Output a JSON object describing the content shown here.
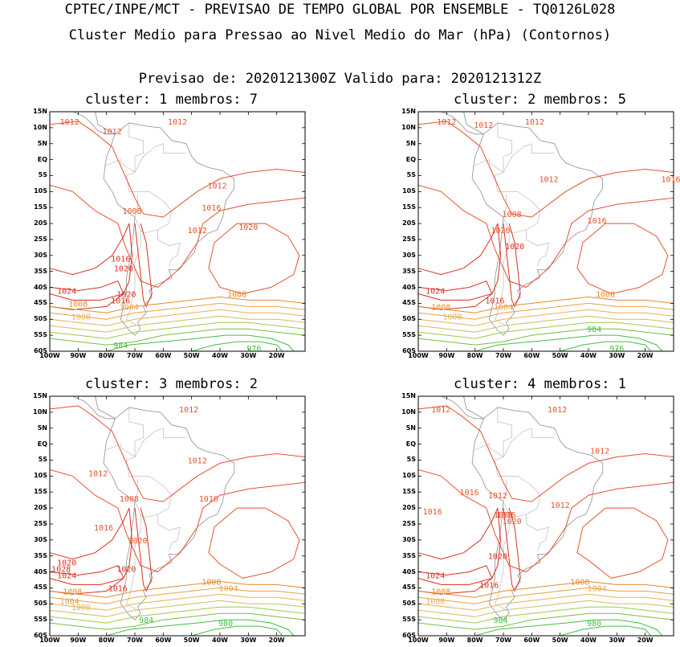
{
  "header": {
    "title_line1": "CPTEC/INPE/MCT - PREVISAO DE TEMPO GLOBAL POR ENSEMBLE - TQ0126L028",
    "title_line2": "Cluster Medio para Pressao ao Nivel Medio do Mar (hPa) (Contornos)",
    "title_line3": "Previsao de: 2020121300Z    Valido para: 2020121312Z"
  },
  "axes": {
    "lat_labels": [
      "15N",
      "10N",
      "5N",
      "EQ",
      "5S",
      "10S",
      "15S",
      "20S",
      "25S",
      "30S",
      "35S",
      "40S",
      "45S",
      "50S",
      "55S",
      "60S"
    ],
    "lon_labels": [
      "100W",
      "90W",
      "80W",
      "70W",
      "60W",
      "50W",
      "40W",
      "30W",
      "20W"
    ]
  },
  "panels": [
    {
      "subtitle": "cluster: 1   membros: 7",
      "labels": [
        {
          "t": "1012",
          "c": "#e8502a"
        },
        {
          "t": "1012",
          "c": "#e8502a"
        },
        {
          "t": "1012",
          "c": "#e8502a"
        },
        {
          "t": "1012",
          "c": "#e8502a"
        },
        {
          "t": "1008",
          "c": "#e8502a"
        },
        {
          "t": "1012",
          "c": "#e8502a"
        },
        {
          "t": "1016",
          "c": "#e8502a"
        },
        {
          "t": "1020",
          "c": "#e8502a"
        },
        {
          "t": "1016",
          "c": "#d8301f"
        },
        {
          "t": "1020",
          "c": "#d8301f"
        },
        {
          "t": "1024",
          "c": "#d8301f"
        },
        {
          "t": "1020",
          "c": "#d8301f"
        },
        {
          "t": "1016",
          "c": "#d8301f"
        },
        {
          "t": "1008",
          "c": "#e8882a"
        },
        {
          "t": "1004",
          "c": "#e8a040"
        },
        {
          "t": "1008",
          "c": "#e8882a"
        },
        {
          "t": "1000",
          "c": "#e8b050"
        },
        {
          "t": "984",
          "c": "#40c040"
        },
        {
          "t": "976",
          "c": "#40c040"
        }
      ]
    },
    {
      "subtitle": "cluster: 2   membros: 5",
      "labels": [
        {
          "t": "1012",
          "c": "#e8502a"
        },
        {
          "t": "1012",
          "c": "#e8502a"
        },
        {
          "t": "1012",
          "c": "#e8502a"
        },
        {
          "t": "1012",
          "c": "#e8502a"
        },
        {
          "t": "1008",
          "c": "#e8502a"
        },
        {
          "t": "1016",
          "c": "#e8502a"
        },
        {
          "t": "1016",
          "c": "#e8502a"
        },
        {
          "t": "1020",
          "c": "#e8502a"
        },
        {
          "t": "1020",
          "c": "#d8301f"
        },
        {
          "t": "1024",
          "c": "#d8301f"
        },
        {
          "t": "1016",
          "c": "#d8301f"
        },
        {
          "t": "1008",
          "c": "#e8882a"
        },
        {
          "t": "1004",
          "c": "#e8a040"
        },
        {
          "t": "1008",
          "c": "#e8882a"
        },
        {
          "t": "1000",
          "c": "#e8b050"
        },
        {
          "t": "984",
          "c": "#40c040"
        },
        {
          "t": "976",
          "c": "#40c040"
        }
      ]
    },
    {
      "subtitle": "cluster: 3   membros: 2",
      "labels": [
        {
          "t": "1012",
          "c": "#e8502a"
        },
        {
          "t": "1012",
          "c": "#e8502a"
        },
        {
          "t": "1012",
          "c": "#e8502a"
        },
        {
          "t": "1008",
          "c": "#e8502a"
        },
        {
          "t": "1016",
          "c": "#e8502a"
        },
        {
          "t": "1016",
          "c": "#e8502a"
        },
        {
          "t": "1020",
          "c": "#e8502a"
        },
        {
          "t": "1020",
          "c": "#d8301f"
        },
        {
          "t": "1020",
          "c": "#d8301f"
        },
        {
          "t": "1028",
          "c": "#d8301f"
        },
        {
          "t": "1024",
          "c": "#d8301f"
        },
        {
          "t": "1016",
          "c": "#d8301f"
        },
        {
          "t": "1008",
          "c": "#e8882a"
        },
        {
          "t": "1004",
          "c": "#e8a040"
        },
        {
          "t": "1008",
          "c": "#e8882a"
        },
        {
          "t": "1004",
          "c": "#e8a040"
        },
        {
          "t": "1000",
          "c": "#e8b050"
        },
        {
          "t": "984",
          "c": "#40c040"
        },
        {
          "t": "980",
          "c": "#40c040"
        }
      ]
    },
    {
      "subtitle": "cluster: 4   membros: 1",
      "labels": [
        {
          "t": "1012",
          "c": "#e8502a"
        },
        {
          "t": "1012",
          "c": "#e8502a"
        },
        {
          "t": "1012",
          "c": "#e8502a"
        },
        {
          "t": "1016",
          "c": "#e8502a"
        },
        {
          "t": "1012",
          "c": "#e8502a"
        },
        {
          "t": "1016",
          "c": "#e8502a"
        },
        {
          "t": "1012",
          "c": "#e8502a"
        },
        {
          "t": "1016",
          "c": "#e8502a"
        },
        {
          "t": "1008",
          "c": "#e8502a"
        },
        {
          "t": "1020",
          "c": "#e8502a"
        },
        {
          "t": "1020",
          "c": "#d8301f"
        },
        {
          "t": "1024",
          "c": "#d8301f"
        },
        {
          "t": "1016",
          "c": "#d8301f"
        },
        {
          "t": "1008",
          "c": "#e8882a"
        },
        {
          "t": "1004",
          "c": "#e8a040"
        },
        {
          "t": "1008",
          "c": "#e8882a"
        },
        {
          "t": "1000",
          "c": "#e8b050"
        },
        {
          "t": "984",
          "c": "#40c040"
        },
        {
          "t": "980",
          "c": "#40c040"
        }
      ]
    }
  ]
}
